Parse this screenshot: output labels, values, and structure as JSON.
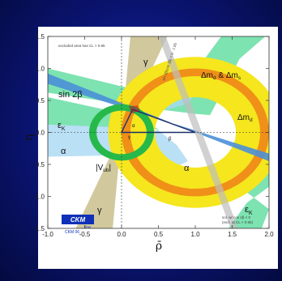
{
  "chart_data": {
    "type": "scatter",
    "title": "",
    "xlabel": "ρ̄",
    "ylabel": "η",
    "xlim": [
      -1.0,
      2.0
    ],
    "ylim": [
      -1.5,
      1.5
    ],
    "x_ticks": [
      "-1.0",
      "-0.5",
      "0.0",
      "0.5",
      "1.0",
      "1.5",
      "2.0"
    ],
    "y_ticks": [
      "-1.5",
      "-1.0",
      "-0.5",
      "0.0",
      "0.5",
      "1.0",
      "1.5"
    ],
    "grid": false,
    "apex": {
      "rho": 0.15,
      "eta": 0.36
    },
    "annotations": {
      "cl_note": "excluded area has CL > 0.95",
      "sin2b": "sin 2β",
      "eps_top": "ε",
      "eps_top_sub": "K",
      "eps_bottom": "ε",
      "eps_bottom_sub": "K",
      "alpha_left": "α",
      "alpha_center": "α",
      "gamma_top": "γ",
      "gamma_bottom": "γ",
      "vub": "|V",
      "vub_sub": "ub",
      "vub_end": "|",
      "dmd_dms": "Δm",
      "dmd_dms_sub1": "d",
      "dmd_dms_mid": " & Δm",
      "dmd_dms_sub2": "s",
      "dmd": "Δm",
      "dmd_sub": "d",
      "angle_alpha": "α",
      "angle_gamma": "γ",
      "angle_beta": "β",
      "sol_note_1": "sol. w/ cos 2β < 0",
      "sol_note_2": "(excl. at CL > 0.95)",
      "diag_note": "sin 2β(cos 2β) < 0 · 1.95"
    },
    "logo": {
      "name": "CKM",
      "sub1": "fitter",
      "sub2": "CKM 06"
    }
  },
  "colors": {
    "background": "#0a1470",
    "plot_bg": "#ffffff",
    "sin2b": "#4a8fd8",
    "eps_k": "#6fe0a8",
    "alpha": "#a9d8f2",
    "gamma": "#c9c08c",
    "vub": "#27b84a",
    "dm_outer": "#f5e61e",
    "dm_inner": "#f09018",
    "triangle": "#1a2f6a"
  }
}
